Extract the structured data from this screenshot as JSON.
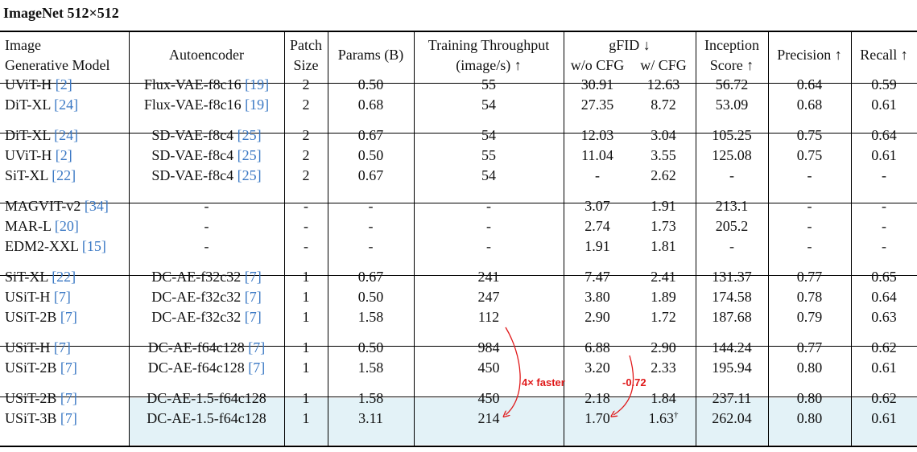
{
  "title": "ImageNet 512×512",
  "header": {
    "col1": [
      "Image",
      "Generative Model"
    ],
    "col2": "Autoencoder",
    "col3": [
      "Patch",
      "Size"
    ],
    "col4": "Params (B)",
    "col5": [
      "Training Throughput",
      "(image/s) ↑"
    ],
    "gfid": "gFID ↓",
    "gfid_sub": [
      "w/o CFG",
      "w/ CFG"
    ],
    "col8": [
      "Inception",
      "Score ↑"
    ],
    "col9": "Precision ↑",
    "col10": "Recall ↑"
  },
  "groups": [
    [
      {
        "model": "UViT-H",
        "mcite": "[2]",
        "ae": "Flux-VAE-f8c16",
        "acite": "[19]",
        "patch": "2",
        "params": "0.50",
        "thr": "55",
        "fid1": "30.91",
        "fid2": "12.63",
        "is": "56.72",
        "prec": "0.64",
        "rec": "0.59"
      },
      {
        "model": "DiT-XL",
        "mcite": "[24]",
        "ae": "Flux-VAE-f8c16",
        "acite": "[19]",
        "patch": "2",
        "params": "0.68",
        "thr": "54",
        "fid1": "27.35",
        "fid2": "8.72",
        "is": "53.09",
        "prec": "0.68",
        "rec": "0.61"
      }
    ],
    [
      {
        "model": "DiT-XL",
        "mcite": "[24]",
        "ae": "SD-VAE-f8c4",
        "acite": "[25]",
        "patch": "2",
        "params": "0.67",
        "thr": "54",
        "fid1": "12.03",
        "fid2": "3.04",
        "is": "105.25",
        "prec": "0.75",
        "rec": "0.64"
      },
      {
        "model": "UViT-H",
        "mcite": "[2]",
        "ae": "SD-VAE-f8c4",
        "acite": "[25]",
        "patch": "2",
        "params": "0.50",
        "thr": "55",
        "fid1": "11.04",
        "fid2": "3.55",
        "is": "125.08",
        "prec": "0.75",
        "rec": "0.61"
      },
      {
        "model": "SiT-XL",
        "mcite": "[22]",
        "ae": "SD-VAE-f8c4",
        "acite": "[25]",
        "patch": "2",
        "params": "0.67",
        "thr": "54",
        "fid1": "-",
        "fid2": "2.62",
        "is": "-",
        "prec": "-",
        "rec": "-"
      }
    ],
    [
      {
        "model": "MAGVIT-v2",
        "mcite": "[34]",
        "ae": "-",
        "acite": "",
        "patch": "-",
        "params": "-",
        "thr": "-",
        "fid1": "3.07",
        "fid2": "1.91",
        "is": "213.1",
        "prec": "-",
        "rec": "-"
      },
      {
        "model": "MAR-L",
        "mcite": "[20]",
        "ae": "-",
        "acite": "",
        "patch": "-",
        "params": "-",
        "thr": "-",
        "fid1": "2.74",
        "fid2": "1.73",
        "is": "205.2",
        "prec": "-",
        "rec": "-"
      },
      {
        "model": "EDM2-XXL",
        "mcite": "[15]",
        "ae": "-",
        "acite": "",
        "patch": "-",
        "params": "-",
        "thr": "-",
        "fid1": "1.91",
        "fid2": "1.81",
        "is": "-",
        "prec": "-",
        "rec": "-"
      }
    ],
    [
      {
        "model": "SiT-XL",
        "mcite": "[22]",
        "ae": "DC-AE-f32c32",
        "acite": "[7]",
        "patch": "1",
        "params": "0.67",
        "thr": "241",
        "fid1": "7.47",
        "fid2": "2.41",
        "is": "131.37",
        "prec": "0.77",
        "rec": "0.65"
      },
      {
        "model": "USiT-H",
        "mcite": "[7]",
        "ae": "DC-AE-f32c32",
        "acite": "[7]",
        "patch": "1",
        "params": "0.50",
        "thr": "247",
        "fid1": "3.80",
        "fid2": "1.89",
        "is": "174.58",
        "prec": "0.78",
        "rec": "0.64"
      },
      {
        "model": "USiT-2B",
        "mcite": "[7]",
        "ae": "DC-AE-f32c32",
        "acite": "[7]",
        "patch": "1",
        "params": "1.58",
        "thr": "112",
        "fid1": "2.90",
        "fid2": "1.72",
        "is": "187.68",
        "prec": "0.79",
        "rec": "0.63"
      }
    ],
    [
      {
        "model": "USiT-H",
        "mcite": "[7]",
        "ae": "DC-AE-f64c128",
        "acite": "[7]",
        "patch": "1",
        "params": "0.50",
        "thr": "984",
        "fid1": "6.88",
        "fid2": "2.90",
        "is": "144.24",
        "prec": "0.77",
        "rec": "0.62"
      },
      {
        "model": "USiT-2B",
        "mcite": "[7]",
        "ae": "DC-AE-f64c128",
        "acite": "[7]",
        "patch": "1",
        "params": "1.58",
        "thr": "450",
        "fid1": "3.20",
        "fid2": "2.33",
        "is": "195.94",
        "prec": "0.80",
        "rec": "0.61"
      }
    ],
    [
      {
        "model": "USiT-2B",
        "mcite": "[7]",
        "ae": "DC-AE-1.5-f64c128",
        "acite": "",
        "patch": "1",
        "params": "1.58",
        "thr": "450",
        "fid1": "2.18",
        "fid2": "1.84",
        "is": "237.11",
        "prec": "0.80",
        "rec": "0.62"
      },
      {
        "model": "USiT-3B",
        "mcite": "[7]",
        "ae": "DC-AE-1.5-f64c128",
        "acite": "",
        "patch": "1",
        "params": "3.11",
        "thr": "214",
        "fid1": "1.70",
        "fid2": "1.63",
        "fid2_sup": "†",
        "is": "262.04",
        "prec": "0.80",
        "rec": "0.61"
      }
    ]
  ],
  "annotations": {
    "speedup": "4× faster",
    "fid_delta": "-0.72",
    "colors": {
      "highlight": "#e3f2f7",
      "annotation": "#e0191a",
      "citation": "#3a78c4"
    }
  }
}
